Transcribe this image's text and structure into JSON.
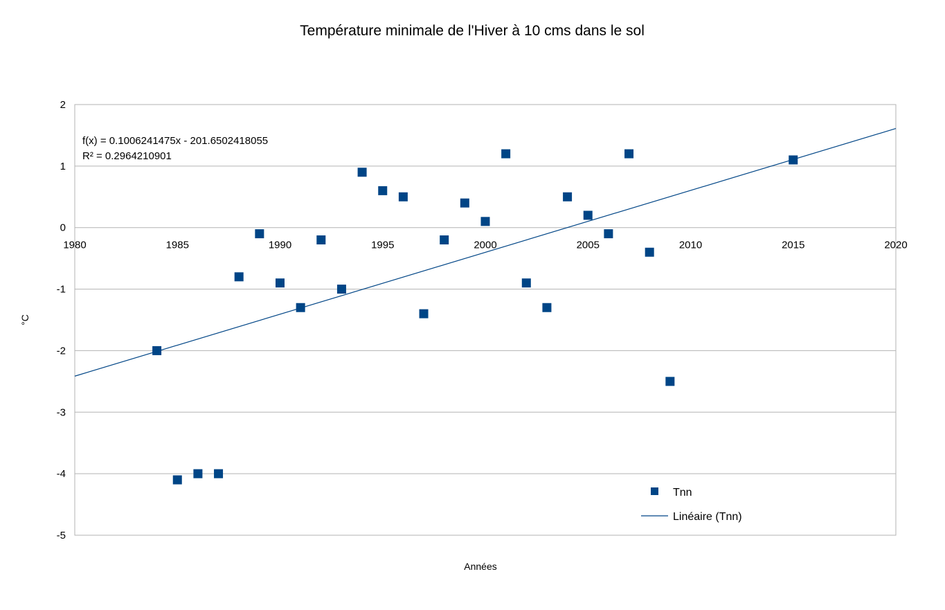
{
  "chart_data": {
    "type": "scatter",
    "title": "Température minimale de l'Hiver à 10 cms dans le sol",
    "xlabel": "Années",
    "ylabel": "°C",
    "xlim": [
      1980,
      2020
    ],
    "ylim": [
      -5,
      2
    ],
    "xticks": [
      1980,
      1985,
      1990,
      1995,
      2000,
      2005,
      2010,
      2015,
      2020
    ],
    "yticks": [
      2,
      1,
      0,
      -1,
      -2,
      -3,
      -4,
      -5
    ],
    "grid": true,
    "marker_color": "#004586",
    "line_color": "#004586",
    "series": [
      {
        "name": "Tnn",
        "points": [
          [
            1984,
            -2.0
          ],
          [
            1985,
            -4.1
          ],
          [
            1986,
            -4.0
          ],
          [
            1987,
            -4.0
          ],
          [
            1988,
            -0.8
          ],
          [
            1989,
            -0.1
          ],
          [
            1990,
            -0.9
          ],
          [
            1991,
            -1.3
          ],
          [
            1992,
            -0.2
          ],
          [
            1993,
            -1.0
          ],
          [
            1994,
            0.9
          ],
          [
            1995,
            0.6
          ],
          [
            1996,
            0.5
          ],
          [
            1997,
            -1.4
          ],
          [
            1998,
            -0.2
          ],
          [
            1999,
            0.4
          ],
          [
            2000,
            0.1
          ],
          [
            2001,
            1.2
          ],
          [
            2002,
            -0.9
          ],
          [
            2003,
            -1.3
          ],
          [
            2004,
            0.5
          ],
          [
            2005,
            0.2
          ],
          [
            2006,
            -0.1
          ],
          [
            2007,
            1.2
          ],
          [
            2008,
            -0.4
          ],
          [
            2009,
            -2.5
          ],
          [
            2015,
            1.1
          ]
        ]
      }
    ],
    "trendline": {
      "name": "Linéaire (Tnn)",
      "slope": 0.1006241475,
      "intercept": -201.6502418055,
      "equation": "f(x) = 0.1006241475x - 201.6502418055",
      "r2": "R² = 0.2964210901"
    },
    "legend": {
      "position": "bottom-right",
      "entries": [
        "Tnn",
        "Linéaire (Tnn)"
      ]
    }
  }
}
